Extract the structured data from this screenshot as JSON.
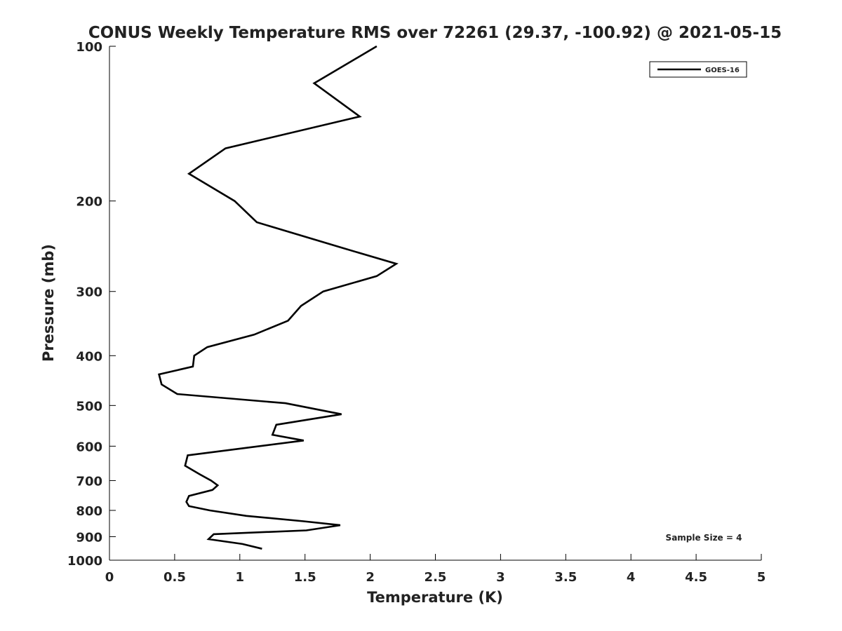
{
  "chart_data": {
    "type": "line",
    "title": "CONUS Weekly Temperature RMS over 72261 (29.37, -100.92) @ 2021-05-15",
    "xlabel": "Temperature (K)",
    "ylabel": "Pressure (mb)",
    "xlim": [
      0,
      5
    ],
    "ylim": [
      100,
      1000
    ],
    "y_scale": "log",
    "y_reversed": true,
    "x_ticks": [
      0,
      0.5,
      1,
      1.5,
      2,
      2.5,
      3,
      3.5,
      4,
      4.5,
      5
    ],
    "x_tick_labels": [
      "0",
      "0.5",
      "1",
      "1.5",
      "2",
      "2.5",
      "3",
      "3.5",
      "4",
      "4.5",
      "5"
    ],
    "y_ticks": [
      100,
      200,
      300,
      400,
      500,
      600,
      700,
      800,
      900,
      1000
    ],
    "y_tick_labels": [
      "100",
      "200",
      "300",
      "400",
      "500",
      "600",
      "700",
      "800",
      "900",
      "1000"
    ],
    "grid": false,
    "legend_position": "top-right",
    "annotation": "Sample Size = 4",
    "series": [
      {
        "name": "GOES-16",
        "color": "#000000",
        "points": [
          [
            2.05,
            100
          ],
          [
            1.57,
            118
          ],
          [
            1.92,
            137
          ],
          [
            0.89,
            158
          ],
          [
            0.61,
            177
          ],
          [
            0.96,
            200
          ],
          [
            1.13,
            220
          ],
          [
            1.79,
            247
          ],
          [
            2.2,
            265
          ],
          [
            2.05,
            280
          ],
          [
            1.64,
            300
          ],
          [
            1.47,
            320
          ],
          [
            1.37,
            342
          ],
          [
            1.11,
            364
          ],
          [
            0.75,
            385
          ],
          [
            0.65,
            400
          ],
          [
            0.64,
            420
          ],
          [
            0.38,
            435
          ],
          [
            0.4,
            455
          ],
          [
            0.52,
            475
          ],
          [
            1.35,
            495
          ],
          [
            1.78,
            520
          ],
          [
            1.28,
            545
          ],
          [
            1.25,
            570
          ],
          [
            1.49,
            585
          ],
          [
            0.6,
            625
          ],
          [
            0.58,
            655
          ],
          [
            0.69,
            680
          ],
          [
            0.78,
            700
          ],
          [
            0.83,
            715
          ],
          [
            0.79,
            730
          ],
          [
            0.61,
            750
          ],
          [
            0.59,
            770
          ],
          [
            0.61,
            785
          ],
          [
            0.77,
            800
          ],
          [
            1.05,
            820
          ],
          [
            1.49,
            840
          ],
          [
            1.77,
            855
          ],
          [
            1.51,
            875
          ],
          [
            0.8,
            890
          ],
          [
            0.76,
            910
          ],
          [
            1.02,
            930
          ],
          [
            1.17,
            950
          ]
        ]
      }
    ]
  }
}
